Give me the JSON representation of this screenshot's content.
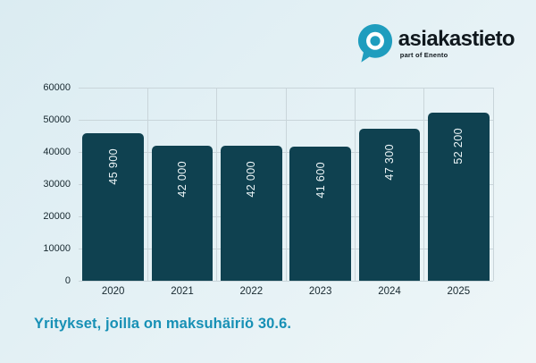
{
  "logo": {
    "name": "asiakastieto",
    "tagline": "part of Enento"
  },
  "caption": "Yritykset, joilla on maksuhäiriö 30.6.",
  "colors": {
    "background_start": "#dbecf2",
    "background_end": "#eef6f8",
    "bar": "#0f4150",
    "grid": "#c9d5da",
    "axis_text": "#17282f",
    "bar_label": "#eef6f8",
    "accent": "#1790b5",
    "logo_teal": "#1f9dbe",
    "logo_text": "#10181d"
  },
  "chart_data": {
    "type": "bar",
    "categories": [
      "2020",
      "2021",
      "2022",
      "2023",
      "2024",
      "2025"
    ],
    "values": [
      45900,
      42000,
      42000,
      41600,
      47300,
      52200
    ],
    "value_labels": [
      "45 900",
      "42 000",
      "42 000",
      "41 600",
      "47 300",
      "52 200"
    ],
    "title": "Yritykset, joilla on maksuhäiriö 30.6.",
    "xlabel": "",
    "ylabel": "",
    "ylim": [
      0,
      60000
    ],
    "ytick_step": 10000,
    "grid": true,
    "legend": "none",
    "value_label_rotation": 90,
    "bar_corner_radius": 5
  }
}
